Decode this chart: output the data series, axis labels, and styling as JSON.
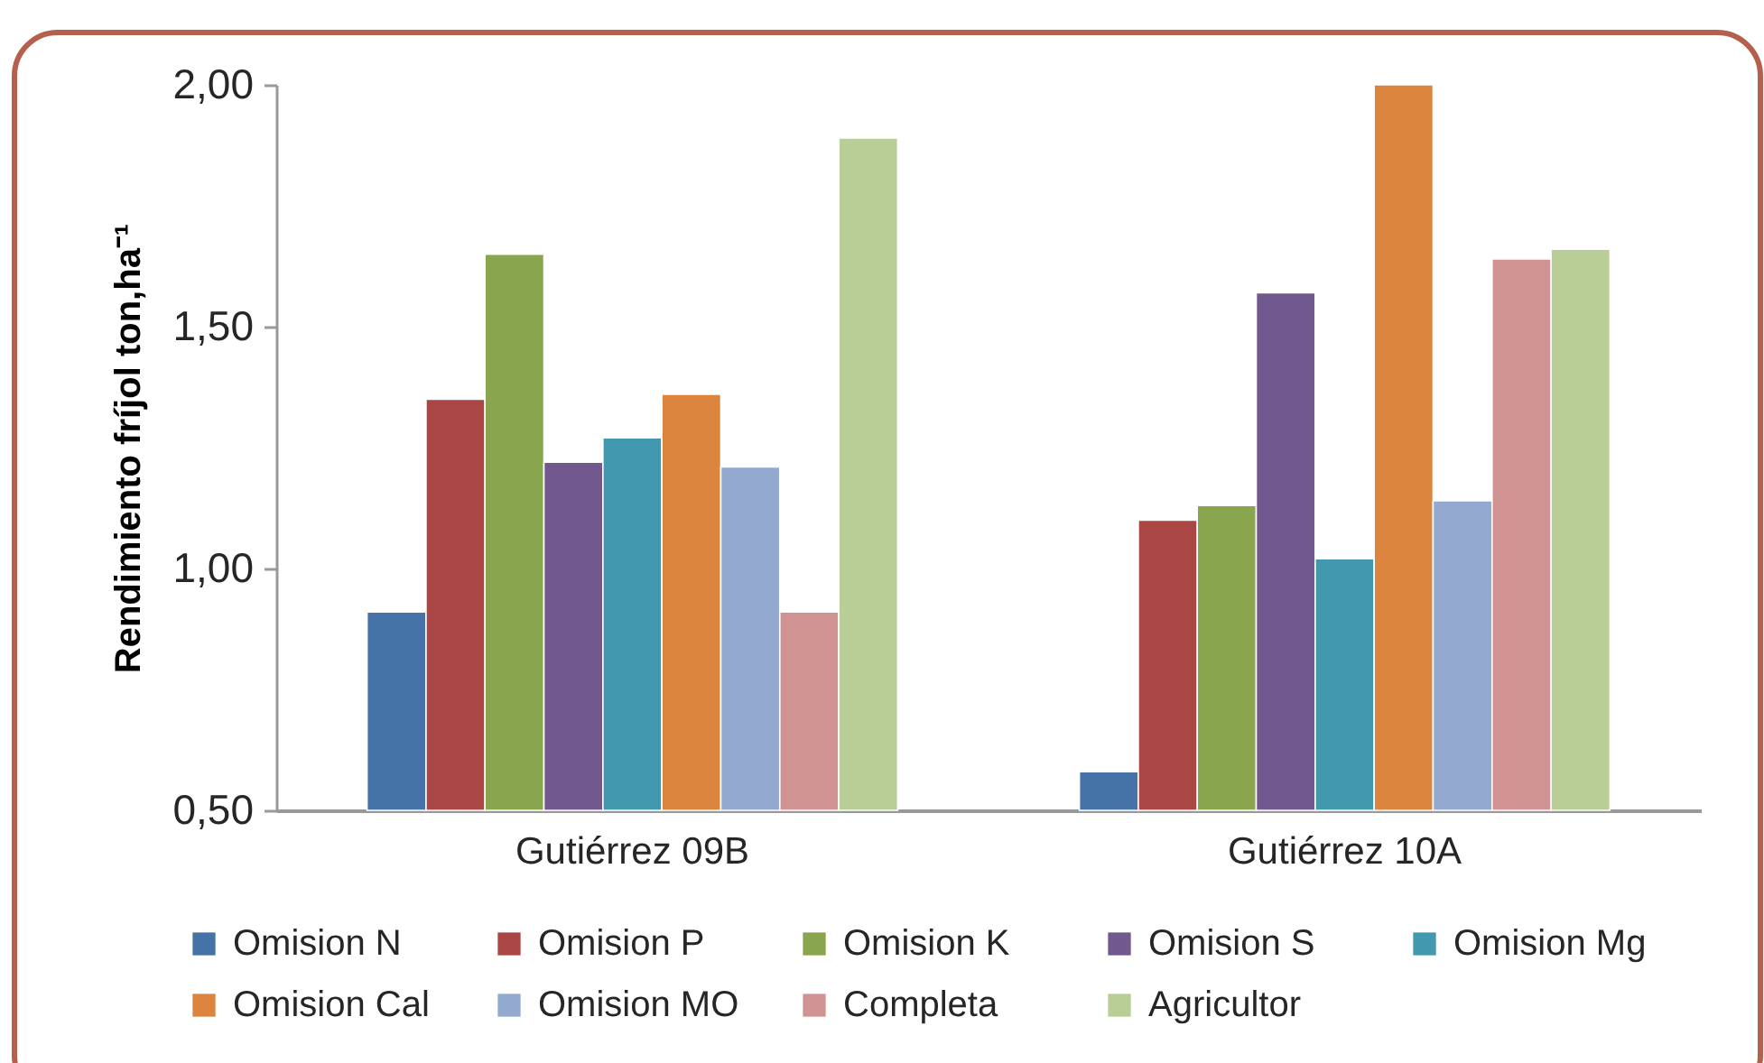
{
  "chart_data": {
    "type": "bar",
    "ylabel": "Rendimiento fríjol ton,ha⁻¹",
    "categories": [
      "Gutiérrez 09B",
      "Gutiérrez 10A"
    ],
    "series": [
      {
        "name": "Omision N",
        "color": "#4572a7",
        "values": [
          0.91,
          0.58
        ]
      },
      {
        "name": "Omision P",
        "color": "#aa4643",
        "values": [
          1.35,
          1.1
        ]
      },
      {
        "name": "Omision K",
        "color": "#89a54e",
        "values": [
          1.65,
          1.13
        ]
      },
      {
        "name": "Omision S",
        "color": "#71588f",
        "values": [
          1.22,
          1.57
        ]
      },
      {
        "name": "Omision Mg",
        "color": "#4198af",
        "values": [
          1.27,
          1.02
        ]
      },
      {
        "name": "Omision Cal",
        "color": "#db843d",
        "values": [
          1.36,
          2.0
        ]
      },
      {
        "name": "Omision MO",
        "color": "#93a9cf",
        "values": [
          1.21,
          1.14
        ]
      },
      {
        "name": "Completa",
        "color": "#d19392",
        "values": [
          0.91,
          1.64
        ]
      },
      {
        "name": "Agricultor",
        "color": "#b9cd96",
        "values": [
          1.89,
          1.66
        ]
      }
    ],
    "ylim": [
      0.5,
      2.0
    ],
    "yticks": [
      {
        "value": 0.5,
        "label": "0,50"
      },
      {
        "value": 1.0,
        "label": "1,00"
      },
      {
        "value": 1.5,
        "label": "1,50"
      },
      {
        "value": 2.0,
        "label": "2,00"
      }
    ],
    "legend": "bottom"
  }
}
